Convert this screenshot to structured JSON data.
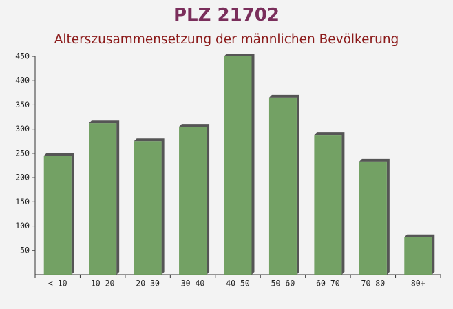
{
  "chart_data": {
    "type": "bar",
    "title": "PLZ 21702",
    "subtitle": "Alterszusammensetzung der männlichen Bevölkerung",
    "categories": [
      "< 10",
      "10-20",
      "20-30",
      "30-40",
      "40-50",
      "50-60",
      "60-70",
      "70-80",
      "80+"
    ],
    "values": [
      245,
      312,
      275,
      305,
      450,
      365,
      288,
      233,
      77
    ],
    "color": "#6b9c5c",
    "ylim": [
      0,
      450
    ],
    "yticks": [
      50,
      100,
      150,
      200,
      250,
      300,
      350,
      400,
      450
    ]
  }
}
